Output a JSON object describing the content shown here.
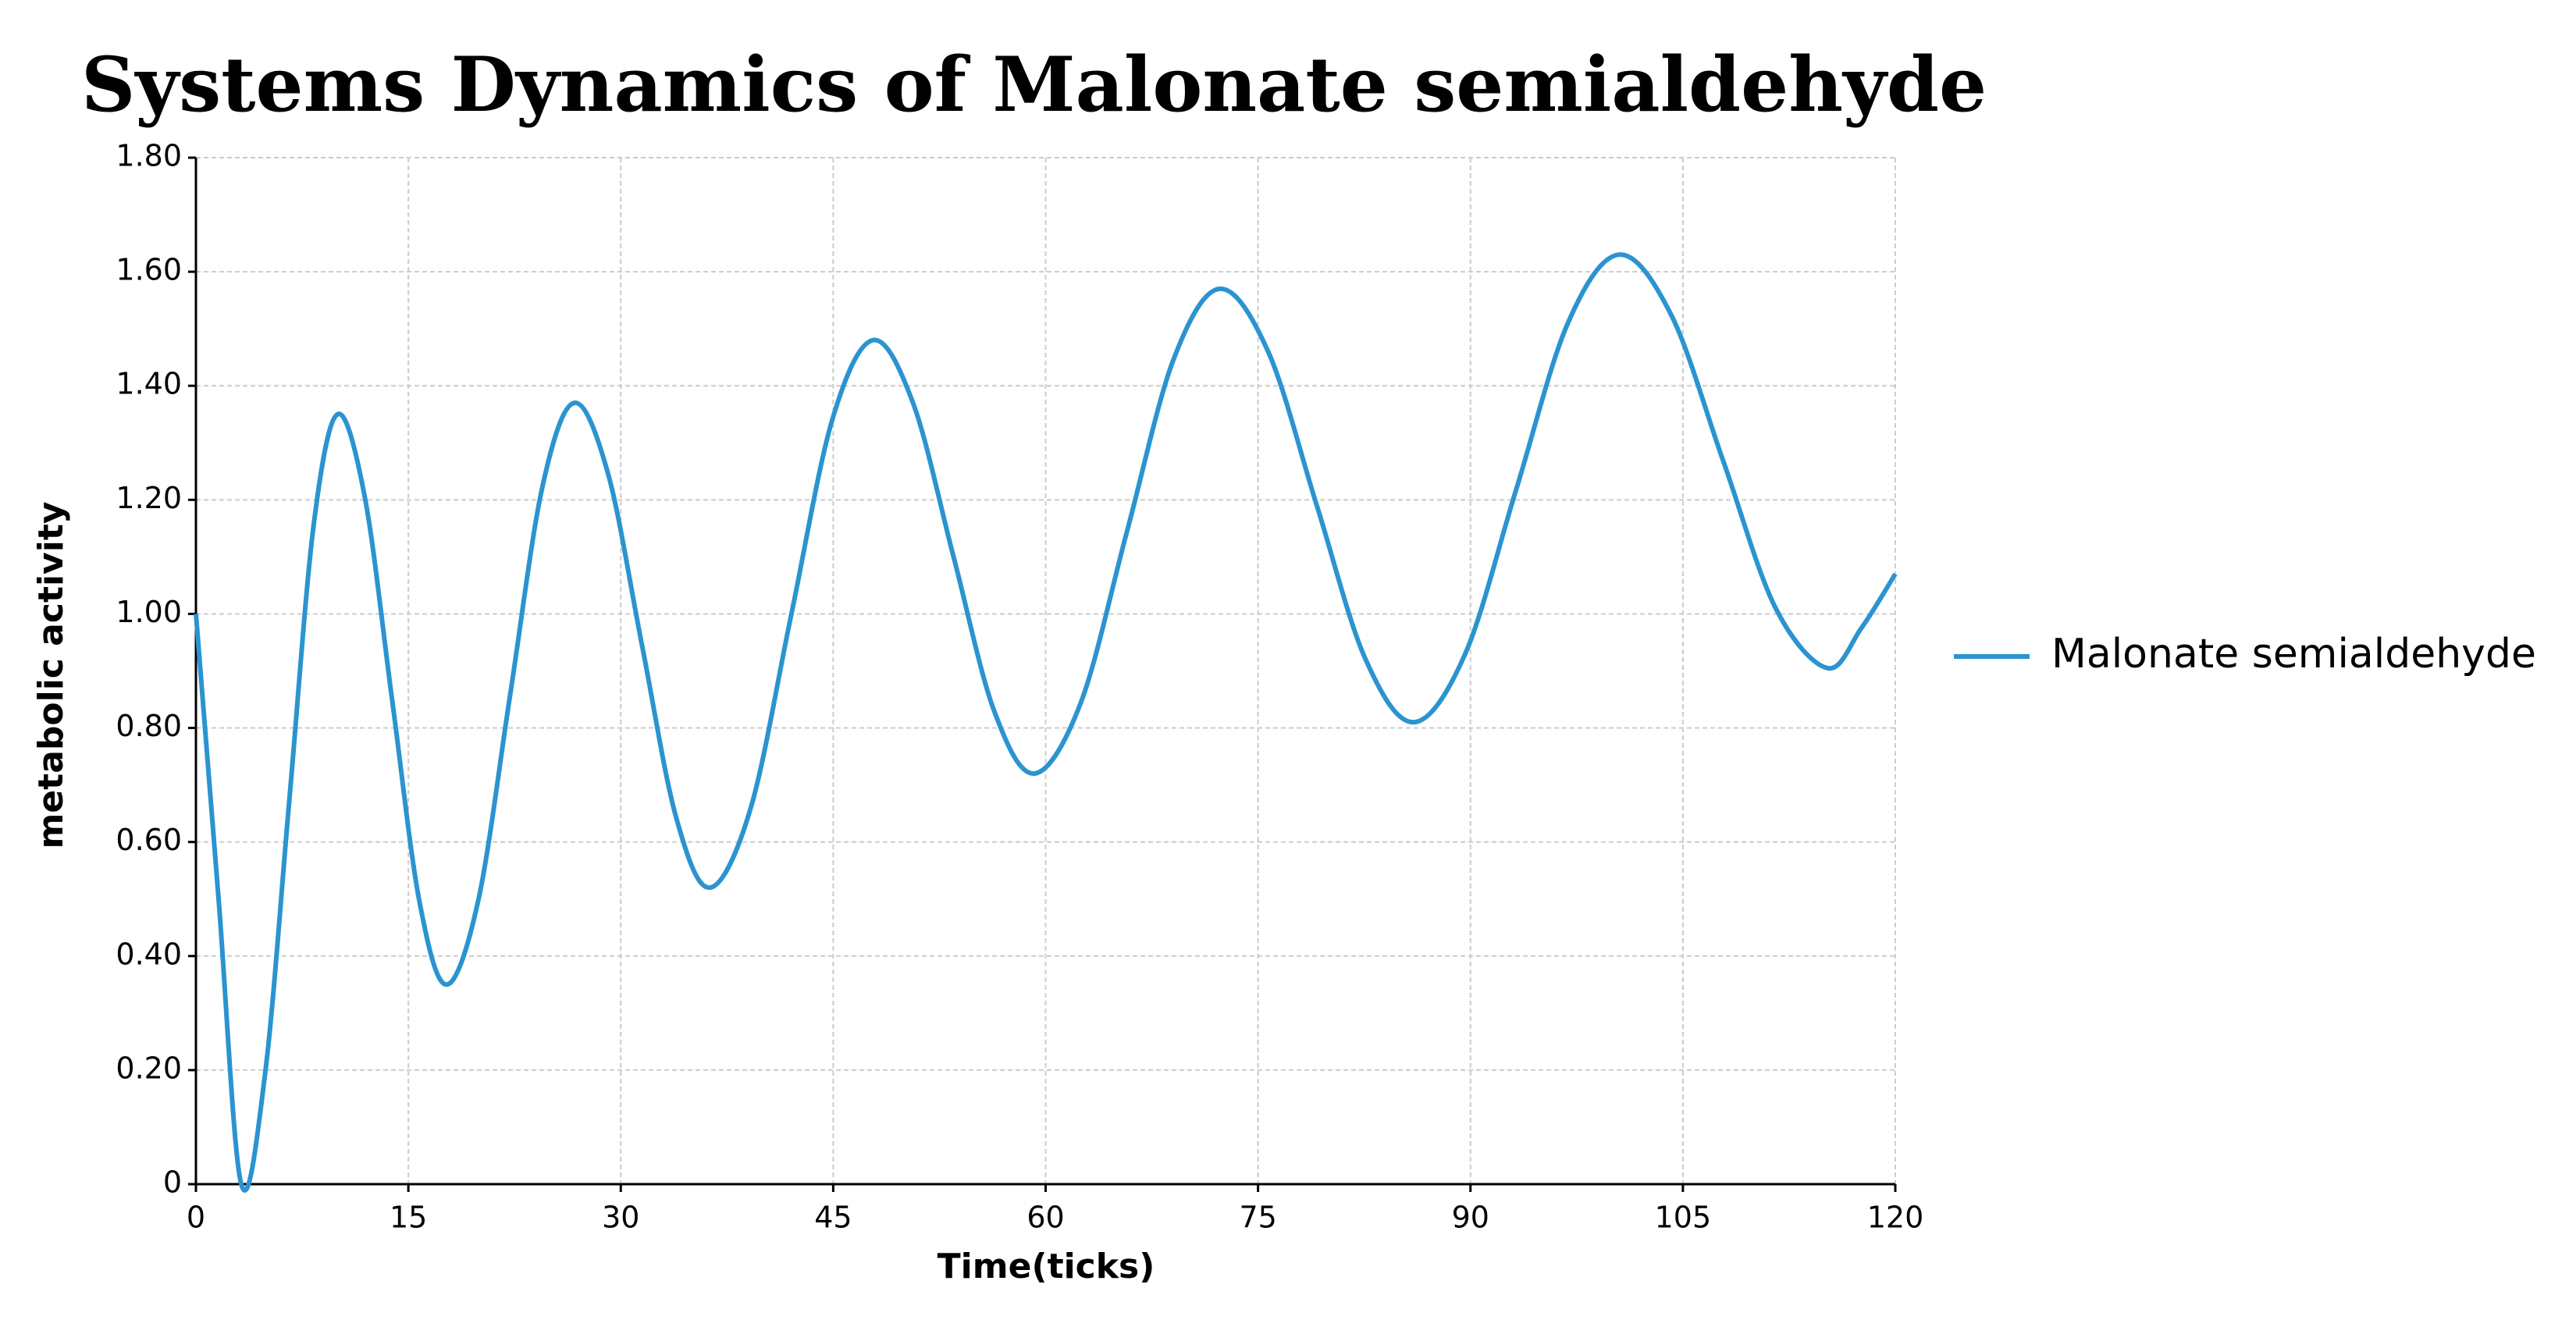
{
  "chart_data": {
    "type": "line",
    "title": "Systems Dynamics of Malonate semialdehyde",
    "xlabel": "Time(ticks)",
    "ylabel": "metabolic activity",
    "xlim": [
      0,
      120
    ],
    "xticks": [
      0,
      15,
      30,
      45,
      60,
      75,
      90,
      105,
      120
    ],
    "ylim": [
      0,
      1.8
    ],
    "yticks": [
      0,
      {
        "value": 0.2,
        "label": "0.20"
      },
      {
        "value": 0.4,
        "label": "0.40"
      },
      {
        "value": 0.6,
        "label": "0.60"
      },
      {
        "value": 0.8,
        "label": "0.80"
      },
      {
        "value": 1.0,
        "label": "1.00"
      },
      {
        "value": 1.2,
        "label": "1.20"
      },
      {
        "value": 1.4,
        "label": "1.40"
      },
      {
        "value": 1.6,
        "label": "1.60"
      },
      {
        "value": 1.8,
        "label": "1.80"
      }
    ],
    "grid": true,
    "legend": "right",
    "x": [
      0,
      1.6,
      3.2,
      4.9,
      6.6,
      8.3,
      10,
      11.93,
      13.85,
      15.78,
      17.7,
      19.95,
      22.2,
      24.45,
      26.7,
      29.1,
      31.5,
      33.9,
      36.3,
      39.18,
      42.05,
      44.93,
      47.8,
      50.65,
      53.5,
      56.35,
      59.2,
      62.48,
      65.75,
      69.03,
      72.3,
      75.73,
      79.15,
      82.58,
      86,
      89.63,
      93.25,
      96.88,
      100.5,
      104.18,
      107.85,
      111.53,
      115.2,
      117.6,
      120
    ],
    "series": [
      {
        "name": "Malonate semialdehyde",
        "color": "#2b94d0",
        "values": [
          1.0,
          0.5,
          0,
          0.197,
          0.675,
          1.153,
          1.35,
          1.204,
          0.85,
          0.496,
          0.35,
          0.499,
          0.86,
          1.221,
          1.37,
          1.246,
          0.945,
          0.644,
          0.52,
          0.66,
          1.0,
          1.34,
          1.48,
          1.369,
          1.1,
          0.831,
          0.72,
          0.844,
          1.145,
          1.446,
          1.57,
          1.459,
          1.19,
          0.921,
          0.81,
          0.93,
          1.22,
          1.51,
          1.63,
          1.524,
          1.268,
          1.011,
          0.905,
          0.975,
          1.07
        ]
      }
    ]
  }
}
